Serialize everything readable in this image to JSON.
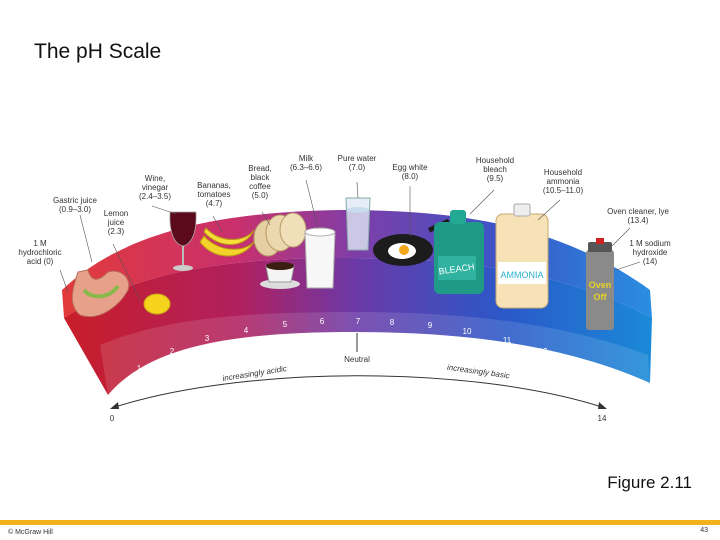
{
  "slide": {
    "title": "The pH Scale",
    "caption": "Figure 2.11",
    "copyright": "© McGraw Hill",
    "page_number": "43"
  },
  "scale": {
    "numbers": [
      "1",
      "2",
      "3",
      "4",
      "5",
      "6",
      "7",
      "8",
      "9",
      "10",
      "11",
      "12",
      "13"
    ],
    "min_label": "0",
    "max_label": "14",
    "neutral_label": "Neutral",
    "acidic_label": "increasingly acidic",
    "basic_label": "increasingly basic"
  },
  "labels": [
    {
      "lines": [
        "1 M",
        "hydrochloric",
        "acid (0)"
      ]
    },
    {
      "lines": [
        "Gastric juice",
        "(0.9–3.0)"
      ]
    },
    {
      "lines": [
        "Lemon",
        "juice",
        "(2.3)"
      ]
    },
    {
      "lines": [
        "Wine,",
        "vinegar",
        "(2.4–3.5)"
      ]
    },
    {
      "lines": [
        "Bananas,",
        "tomatoes",
        "(4.7)"
      ]
    },
    {
      "lines": [
        "Bread,",
        "black",
        "coffee",
        "(5.0)"
      ]
    },
    {
      "lines": [
        "Milk",
        "(6.3–6.6)"
      ]
    },
    {
      "lines": [
        "Pure water",
        "(7.0)"
      ]
    },
    {
      "lines": [
        "Egg white",
        "(8.0)"
      ]
    },
    {
      "lines": [
        "Household",
        "bleach",
        "(9.5)"
      ]
    },
    {
      "lines": [
        "Household",
        "ammonia",
        "(10.5–11.0)"
      ]
    },
    {
      "lines": [
        "Oven cleaner, lye",
        "(13.4)"
      ]
    },
    {
      "lines": [
        "1 M sodium",
        "hydroxide",
        "(14)"
      ]
    }
  ],
  "product_text": {
    "bleach": "BLEACH",
    "ammonia": "AMMONIA",
    "oven_line1": "Oven",
    "oven_line2": "Off"
  },
  "colors": {
    "acid": "#d8222b",
    "acid_mid": "#b8246a",
    "neutral": "#6a3aa8",
    "base_mid": "#2a58c8",
    "base": "#1a8ad8",
    "accent_bar": "#f2b21a"
  }
}
